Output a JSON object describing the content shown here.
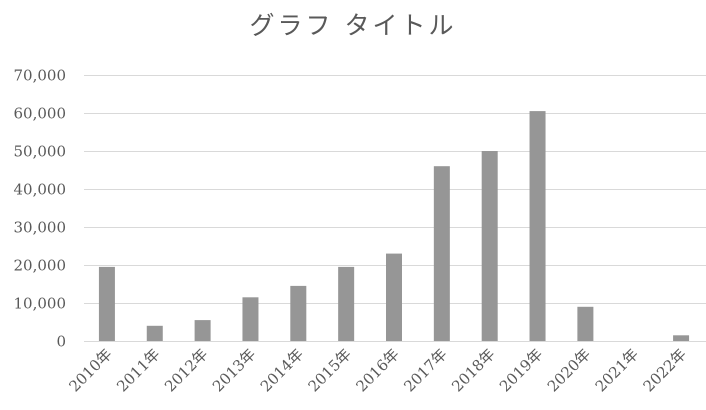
{
  "chart_data": {
    "type": "bar",
    "title": "グラフ タイトル",
    "categories": [
      "2010年",
      "2011年",
      "2012年",
      "2013年",
      "2014年",
      "2015年",
      "2016年",
      "2017年",
      "2018年",
      "2019年",
      "2020年",
      "2021年",
      "2022年"
    ],
    "values": [
      19500,
      4000,
      5500,
      11500,
      14500,
      19500,
      23000,
      46000,
      50000,
      60500,
      9000,
      0,
      1500
    ],
    "y_ticks": [
      "0",
      "10,000",
      "20,000",
      "30,000",
      "40,000",
      "50,000",
      "60,000",
      "70,000"
    ],
    "ylim": [
      0,
      70000
    ],
    "xlabel": "",
    "ylabel": "",
    "grid": true,
    "legend": "none",
    "bar_color": "#969696",
    "grid_color": "#d9d9d9",
    "text_color": "#595959"
  }
}
